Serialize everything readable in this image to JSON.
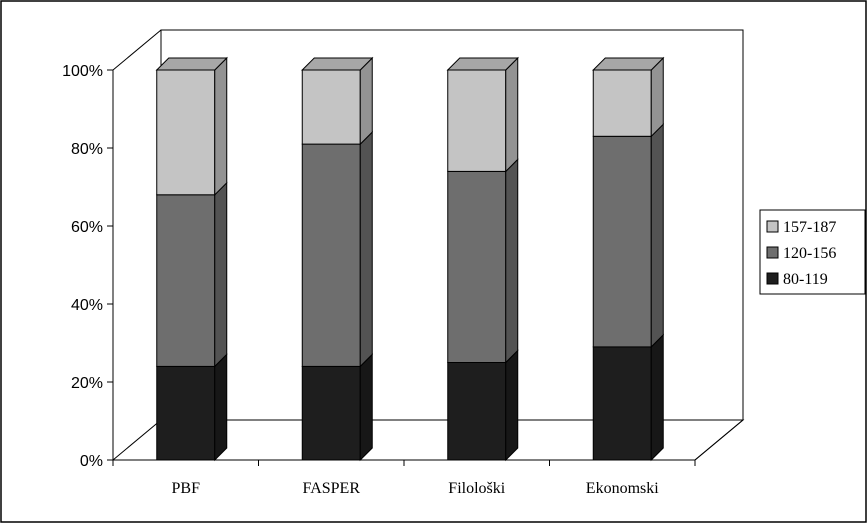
{
  "chart_data": {
    "type": "bar",
    "stacked": true,
    "percent_stacked": true,
    "three_d": true,
    "categories": [
      "PBF",
      "FASPER",
      "Filološki",
      "Ekonomski"
    ],
    "series": [
      {
        "name": "80-119",
        "values": [
          24,
          24,
          25,
          29
        ],
        "color": "#1e1e1e"
      },
      {
        "name": "120-156",
        "values": [
          44,
          57,
          49,
          54
        ],
        "color": "#6e6e6e"
      },
      {
        "name": "157-187",
        "values": [
          32,
          19,
          26,
          17
        ],
        "color": "#c4c4c4"
      }
    ],
    "ylim": [
      0,
      100
    ],
    "yticks": [
      "0%",
      "20%",
      "40%",
      "60%",
      "80%",
      "100%"
    ],
    "legend_position": "right",
    "grid": false
  }
}
